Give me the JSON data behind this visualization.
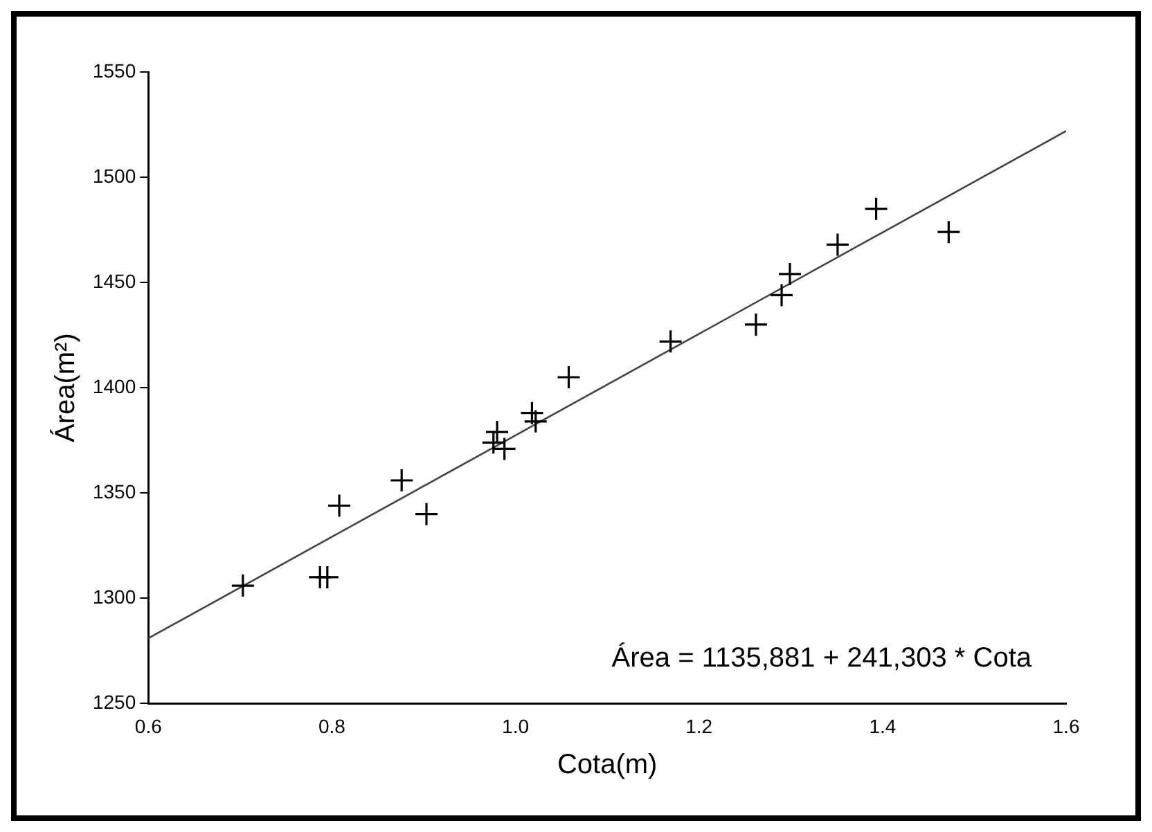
{
  "chart_data": {
    "type": "scatter",
    "xlabel": "Cota(m)",
    "ylabel": "Área(m²)",
    "xlim": [
      0.6,
      1.6
    ],
    "xticks": [
      {
        "value": 0.6,
        "label": "0.6"
      },
      {
        "value": 0.8,
        "label": "0.8"
      },
      {
        "value": 1.0,
        "label": "1.0"
      },
      {
        "value": 1.2,
        "label": "1.2"
      },
      {
        "value": 1.4,
        "label": "1.4"
      },
      {
        "value": 1.6,
        "label": "1.6"
      }
    ],
    "ylim": [
      1250,
      1550
    ],
    "yticks": [
      1250,
      1300,
      1350,
      1400,
      1450,
      1500,
      1550
    ],
    "grid": false,
    "legend": false,
    "annotations": [
      "Área = 1135,881 + 241,303 * Cota"
    ],
    "series": [
      {
        "marker": "cross",
        "color": "#000000",
        "x": [
          0.703,
          0.787,
          0.795,
          0.808,
          0.876,
          0.903,
          0.98,
          0.976,
          0.988,
          1.018,
          1.022,
          1.058,
          1.169,
          1.262,
          1.29,
          1.299,
          1.351,
          1.393,
          1.472
        ],
        "values": [
          1306,
          1310,
          1310,
          1344,
          1356,
          1340,
          1379,
          1374,
          1371,
          1388,
          1384,
          1405,
          1422,
          1430,
          1444,
          1454,
          1468,
          1485,
          1474
        ]
      },
      {
        "type": "line",
        "marker": "none",
        "line_style": "solid",
        "color": "#444444",
        "x": [
          0.6,
          1.6
        ],
        "values": [
          1281,
          1522
        ]
      }
    ]
  }
}
